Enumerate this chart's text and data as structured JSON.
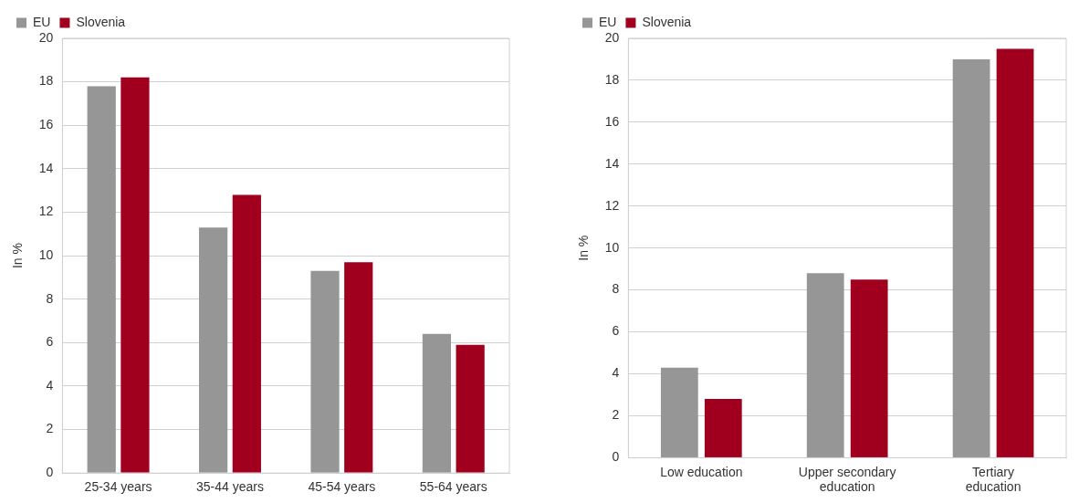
{
  "chart_data": [
    {
      "type": "bar",
      "ylabel": "In %",
      "categories": [
        "25-34 years",
        "35-44 years",
        "45-54 years",
        "55-64 years"
      ],
      "series": [
        {
          "name": "EU",
          "color": "#969696",
          "values": [
            17.8,
            11.3,
            9.3,
            6.4
          ]
        },
        {
          "name": "Slovenia",
          "color": "#a0001e",
          "values": [
            18.2,
            12.8,
            9.7,
            5.9
          ]
        }
      ],
      "ylim": [
        0,
        20
      ],
      "yticks": [
        0,
        2,
        4,
        6,
        8,
        10,
        12,
        14,
        16,
        18,
        20
      ],
      "grid": "y",
      "legend": "top left"
    },
    {
      "type": "bar",
      "ylabel": "In %",
      "categories": [
        "Low education",
        "Upper secondary education",
        "Tertiary education"
      ],
      "series": [
        {
          "name": "EU",
          "color": "#969696",
          "values": [
            4.3,
            8.8,
            19.0
          ]
        },
        {
          "name": "Slovenia",
          "color": "#a0001e",
          "values": [
            2.8,
            8.5,
            19.5
          ]
        }
      ],
      "ylim": [
        0,
        20
      ],
      "yticks": [
        0,
        2,
        4,
        6,
        8,
        10,
        12,
        14,
        16,
        18,
        20
      ],
      "grid": "y",
      "legend": "top left"
    }
  ]
}
